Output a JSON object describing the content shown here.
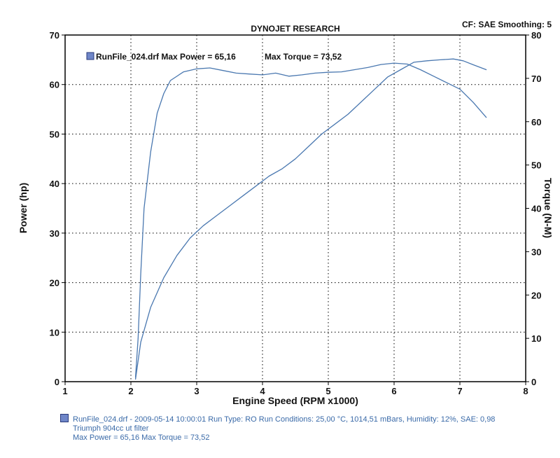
{
  "header": {
    "title": "DYNOJET RESEARCH",
    "cf_info": "CF: SAE  Smoothing: 5"
  },
  "legend": {
    "run_label": "RunFile_024.drf Max Power = 65,16",
    "torque_label": "Max Torque = 73,52",
    "swatch_color": "#6f86c8"
  },
  "footer": {
    "line1": "RunFile_024.drf - 2009-05-14 10:00:01  Run Type: RO  Run Conditions: 25,00 °C, 1014,51 mBars,  Humidity:  12%,  SAE: 0,98",
    "line2": "Triumph 904cc ut filter",
    "line3": "Max Power = 65,16  Max Torque = 73,52"
  },
  "colors": {
    "curve": "#4a78b0",
    "grid": "#000000",
    "footer_text": "#3a6aa8"
  },
  "chart_data": {
    "type": "line",
    "title": "DYNOJET RESEARCH",
    "xlabel": "Engine Speed (RPM x1000)",
    "ylabel": "Power (hp)",
    "y2label": "Torque (N-M)",
    "xlim": [
      1,
      8
    ],
    "ylim": [
      0,
      70
    ],
    "y2lim": [
      0,
      80
    ],
    "x_ticks": [
      1,
      2,
      3,
      4,
      5,
      6,
      7,
      8
    ],
    "y_ticks": [
      0,
      10,
      20,
      30,
      40,
      50,
      60,
      70
    ],
    "y2_ticks": [
      0,
      10,
      20,
      30,
      40,
      50,
      60,
      70,
      80
    ],
    "grid": true,
    "series": [
      {
        "axis": "left",
        "values_xy": [
          [
            2.07,
            0.5
          ],
          [
            2.15,
            8
          ],
          [
            2.3,
            15
          ],
          [
            2.5,
            21
          ],
          [
            2.7,
            25.5
          ],
          [
            2.9,
            29
          ],
          [
            3.1,
            31.5
          ],
          [
            3.3,
            33.5
          ],
          [
            3.5,
            35.5
          ],
          [
            3.7,
            37.5
          ],
          [
            3.9,
            39.5
          ],
          [
            4.1,
            41.5
          ],
          [
            4.3,
            43
          ],
          [
            4.5,
            45
          ],
          [
            4.7,
            47.5
          ],
          [
            4.9,
            50
          ],
          [
            5.1,
            52
          ],
          [
            5.3,
            54
          ],
          [
            5.5,
            56.5
          ],
          [
            5.7,
            59
          ],
          [
            5.9,
            61.5
          ],
          [
            6.1,
            63
          ],
          [
            6.3,
            64.5
          ],
          [
            6.5,
            64.8
          ],
          [
            6.7,
            65
          ],
          [
            6.9,
            65.16
          ],
          [
            7.05,
            64.8
          ],
          [
            7.2,
            64
          ],
          [
            7.4,
            63
          ]
        ]
      },
      {
        "axis": "right",
        "values_xy": [
          [
            2.07,
            1
          ],
          [
            2.11,
            10
          ],
          [
            2.15,
            25
          ],
          [
            2.2,
            40
          ],
          [
            2.3,
            53
          ],
          [
            2.4,
            62
          ],
          [
            2.5,
            66.5
          ],
          [
            2.6,
            69.5
          ],
          [
            2.8,
            71.5
          ],
          [
            3.0,
            72.2
          ],
          [
            3.2,
            72.4
          ],
          [
            3.4,
            71.8
          ],
          [
            3.6,
            71.2
          ],
          [
            3.8,
            71
          ],
          [
            4.0,
            70.8
          ],
          [
            4.2,
            71.2
          ],
          [
            4.4,
            70.5
          ],
          [
            4.6,
            70.8
          ],
          [
            4.8,
            71.2
          ],
          [
            5.0,
            71.4
          ],
          [
            5.2,
            71.5
          ],
          [
            5.4,
            72
          ],
          [
            5.6,
            72.5
          ],
          [
            5.8,
            73.2
          ],
          [
            6.0,
            73.52
          ],
          [
            6.2,
            73.3
          ],
          [
            6.4,
            72
          ],
          [
            6.6,
            70.5
          ],
          [
            6.8,
            69
          ],
          [
            7.0,
            67.5
          ],
          [
            7.2,
            64.5
          ],
          [
            7.4,
            61
          ]
        ]
      }
    ]
  }
}
